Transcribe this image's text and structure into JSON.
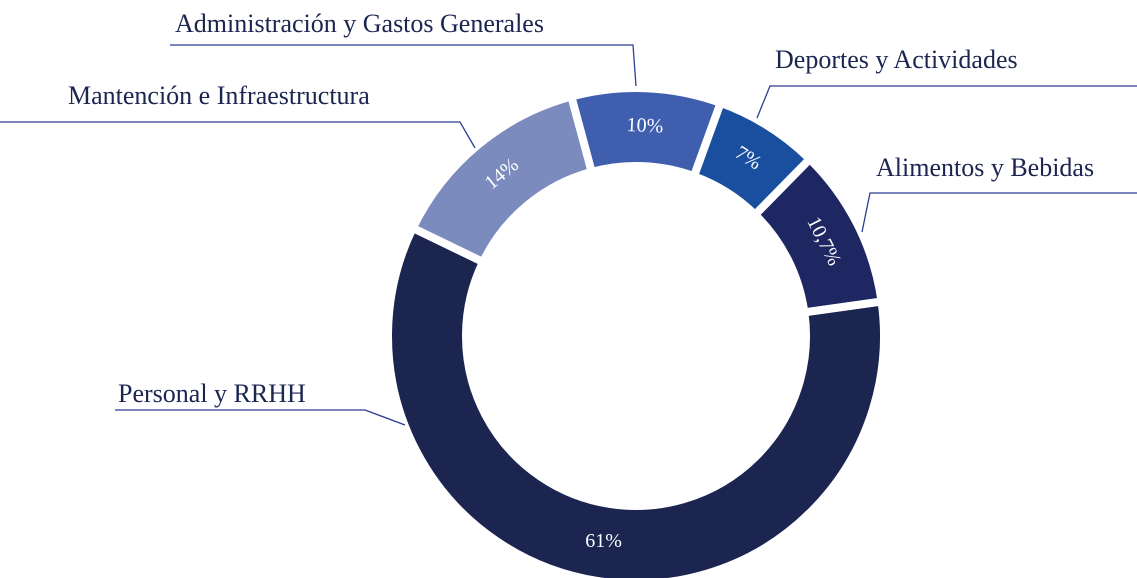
{
  "chart_data": {
    "type": "donut",
    "categories": [
      "Personal y RRHH",
      "Mantención e Infraestructura",
      "Administración y Gastos Generales",
      "Deportes y Actividades",
      "Alimentos y Bebidas"
    ],
    "values": [
      61,
      14,
      10,
      7,
      10.7
    ],
    "value_labels": [
      "61%",
      "14%",
      "10%",
      "7%",
      "10,7%"
    ],
    "colors": [
      "#1b2550",
      "#7b8bbd",
      "#3f5fae",
      "#1a4fa0",
      "#1f2762"
    ]
  }
}
